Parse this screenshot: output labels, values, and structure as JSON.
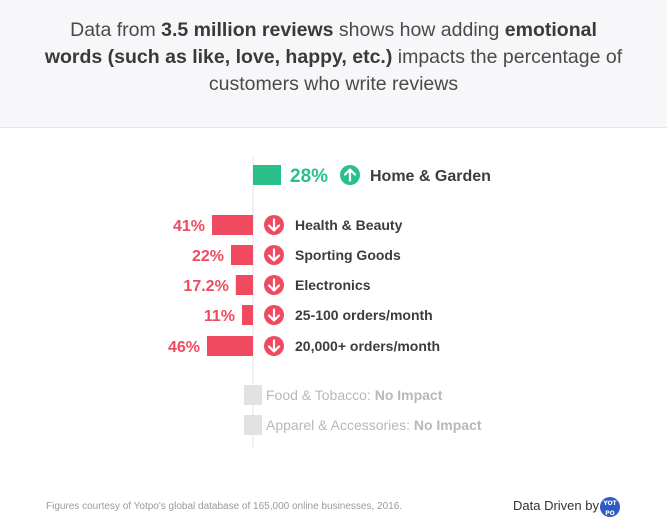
{
  "header": {
    "p1": "Data from ",
    "b1": "3.5 million reviews",
    "p2": " shows how adding ",
    "b2": "emotional words (such as like, love, happy, etc.)",
    "p3": " impacts the percentage of customers who write reviews"
  },
  "colors": {
    "increase": "#2bbf8a",
    "decrease": "#ef4a60",
    "no_impact": "#e2e2e2",
    "text_dark": "#3c3c3c",
    "text_muted": "#b8b8b8"
  },
  "chart_data": {
    "type": "bar",
    "categories": [
      "Home & Garden",
      "Health & Beauty",
      "Sporting Goods",
      "Electronics",
      "25-100 orders/month",
      "20,000+ orders/month",
      "Food & Tobacco",
      "Apparel & Accessories"
    ],
    "values": [
      28,
      -41,
      -22,
      -17.2,
      -11,
      -46,
      0,
      0
    ],
    "value_labels": [
      "28%",
      "41%",
      "22%",
      "17.2%",
      "11%",
      "46%",
      "",
      ""
    ],
    "direction": [
      "up",
      "down",
      "down",
      "down",
      "down",
      "down",
      "none",
      "none"
    ],
    "impact_labels": [
      "",
      "",
      "",
      "",
      "",
      "",
      "No Impact",
      "No Impact"
    ],
    "impact_separator": ": "
  },
  "footer": {
    "note": "Figures courtesy of Yotpo's global database of 165,000 online businesses, 2016.",
    "brand_text": "Data Driven by",
    "logo_text_1": "YOT",
    "logo_text_2": "PO"
  }
}
